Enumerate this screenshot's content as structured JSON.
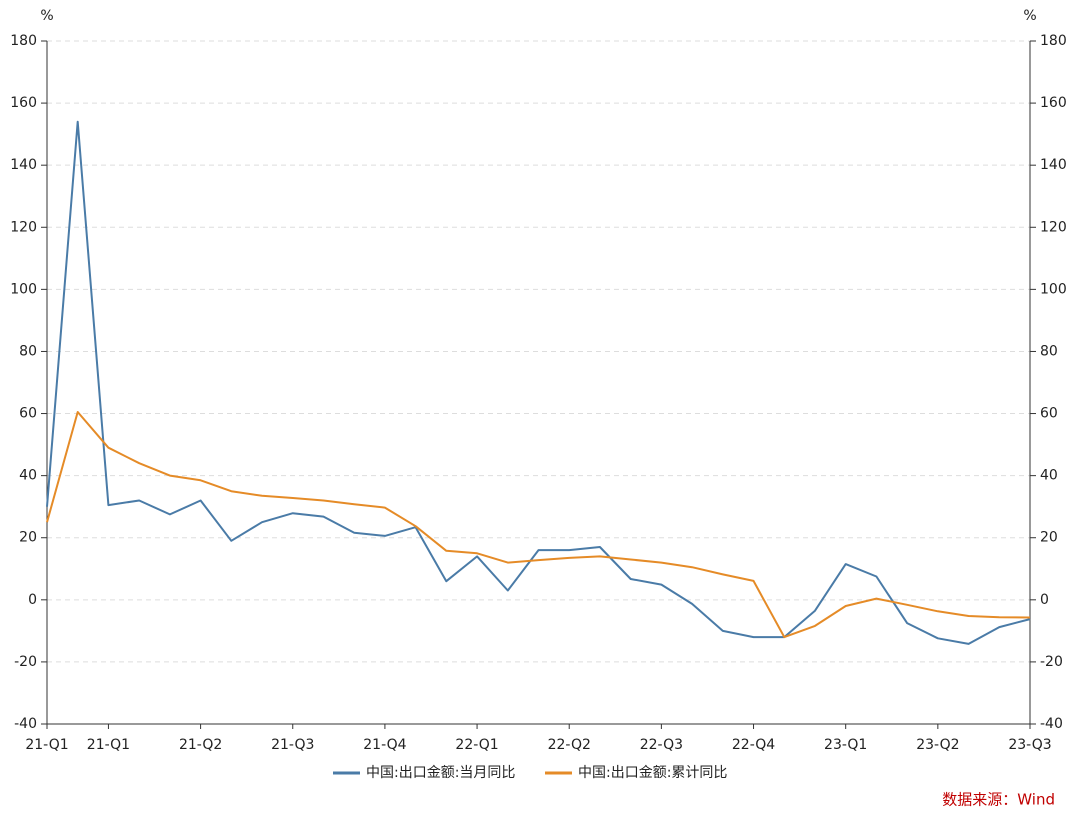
{
  "chart_data": {
    "type": "line",
    "ylabel": "%",
    "y2label": "%",
    "categories": [
      "21-Q1",
      null,
      "21-Q1",
      null,
      null,
      "21-Q2",
      null,
      null,
      "21-Q3",
      null,
      null,
      "21-Q4",
      null,
      null,
      "22-Q1",
      null,
      null,
      "22-Q2",
      null,
      null,
      "22-Q3",
      null,
      null,
      "22-Q4",
      null,
      null,
      "23-Q1",
      null,
      null,
      "23-Q2",
      null,
      null,
      "23-Q3"
    ],
    "series": [
      {
        "name": "中国:出口金额:当月同比",
        "color": "#4a7ba7",
        "values": [
          30,
          154,
          30.5,
          32,
          27.5,
          32,
          19,
          25,
          27.9,
          26.8,
          21.6,
          20.6,
          23.4,
          6,
          14,
          3,
          16,
          16,
          17,
          6.7,
          4.9,
          -1.3,
          -10,
          -12,
          -12,
          -3.5,
          11.5,
          7.5,
          -7.5,
          -12.4,
          -14.2,
          -8.8,
          -6.2
        ]
      },
      {
        "name": "中国:出口金额:累计同比",
        "color": "#e58b27",
        "values": [
          25,
          60.5,
          49,
          44,
          40,
          38.5,
          35,
          33.5,
          32.8,
          32,
          30.8,
          29.7,
          23.7,
          15.8,
          15,
          12,
          12.8,
          13.5,
          14,
          13,
          12,
          10.5,
          8.2,
          6.1,
          -12,
          -8.4,
          -2,
          0.4,
          -1.6,
          -3.7,
          -5.2,
          -5.6,
          -5.7
        ]
      }
    ],
    "ylim": [
      -40,
      180
    ],
    "yticks": [
      -40,
      -20,
      0,
      20,
      40,
      60,
      80,
      100,
      120,
      140,
      160,
      180
    ],
    "y2lim": [
      -40,
      180
    ],
    "y2ticks": [
      -40,
      -20,
      0,
      20,
      40,
      60,
      80,
      100,
      120,
      140,
      160,
      180
    ],
    "grid": true,
    "source": "数据来源：Wind"
  }
}
